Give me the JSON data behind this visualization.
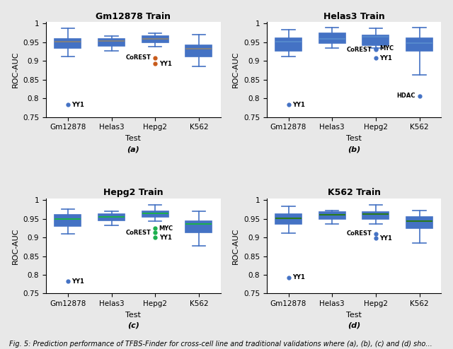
{
  "subplots": [
    {
      "title": "Gm12878 Train",
      "label": "(a)",
      "box_color": "#C85A1A",
      "box_edge_color": "#4472C4",
      "median_color": "#808080",
      "outlier_color": "#C85A1A",
      "whisker_color": "#4472C4",
      "categories": [
        "Gm12878",
        "Helas3",
        "Hepg2",
        "K562"
      ],
      "boxes": [
        {
          "q1": 0.935,
          "median": 0.952,
          "q3": 0.96,
          "whislo": 0.912,
          "whishi": 0.987
        },
        {
          "q1": 0.94,
          "median": 0.953,
          "q3": 0.96,
          "whislo": 0.928,
          "whishi": 0.966
        },
        {
          "q1": 0.95,
          "median": 0.96,
          "q3": 0.966,
          "whislo": 0.938,
          "whishi": 0.975
        },
        {
          "q1": 0.912,
          "median": 0.932,
          "q3": 0.943,
          "whislo": 0.885,
          "whishi": 0.97
        }
      ],
      "outliers": [
        {
          "cat_idx": 0,
          "val": 0.783,
          "label": "YY1",
          "label_side": "right",
          "color": "#4472C4"
        },
        {
          "cat_idx": 2,
          "val": 0.909,
          "label": "CoREST",
          "label_side": "left",
          "color": "#C85A1A"
        },
        {
          "cat_idx": 2,
          "val": 0.893,
          "label": "YY1",
          "label_side": "right",
          "color": "#C85A1A"
        }
      ],
      "ylim": [
        0.75,
        1.005
      ],
      "yticks": [
        0.75,
        0.8,
        0.85,
        0.9,
        0.95,
        1.0
      ]
    },
    {
      "title": "Helas3 Train",
      "label": "(b)",
      "box_color": "#3B5EA6",
      "box_edge_color": "#4472C4",
      "median_color": "#5588CC",
      "outlier_color": "#4472C4",
      "whisker_color": "#4472C4",
      "categories": [
        "Gm12878",
        "Helas3",
        "Hepg2",
        "K562"
      ],
      "boxes": [
        {
          "q1": 0.928,
          "median": 0.952,
          "q3": 0.962,
          "whislo": 0.912,
          "whishi": 0.983
        },
        {
          "q1": 0.948,
          "median": 0.96,
          "q3": 0.974,
          "whislo": 0.934,
          "whishi": 0.99
        },
        {
          "q1": 0.942,
          "median": 0.965,
          "q3": 0.968,
          "whislo": 0.935,
          "whishi": 0.988
        },
        {
          "q1": 0.928,
          "median": 0.948,
          "q3": 0.962,
          "whislo": 0.863,
          "whishi": 0.99
        }
      ],
      "outliers": [
        {
          "cat_idx": 0,
          "val": 0.783,
          "label": "YY1",
          "label_side": "right",
          "color": "#4472C4"
        },
        {
          "cat_idx": 2,
          "val": 0.93,
          "label": "CoREST",
          "label_side": "left",
          "color": "#4472C4"
        },
        {
          "cat_idx": 2,
          "val": 0.933,
          "label": "MYC",
          "label_side": "right",
          "color": "#4472C4"
        },
        {
          "cat_idx": 2,
          "val": 0.908,
          "label": "YY1",
          "label_side": "right",
          "color": "#4472C4"
        },
        {
          "cat_idx": 3,
          "val": 0.807,
          "label": "HDAC",
          "label_side": "left",
          "color": "#4472C4"
        }
      ],
      "ylim": [
        0.75,
        1.005
      ],
      "yticks": [
        0.75,
        0.8,
        0.85,
        0.9,
        0.95,
        1.0
      ]
    },
    {
      "title": "Hepg2 Train",
      "label": "(c)",
      "box_color": "#1DAF4E",
      "box_edge_color": "#4472C4",
      "median_color": "#1DAF4E",
      "outlier_color": "#1DAF4E",
      "whisker_color": "#4472C4",
      "categories": [
        "Gm12878",
        "Helas3",
        "Hepg2",
        "K562"
      ],
      "boxes": [
        {
          "q1": 0.93,
          "median": 0.95,
          "q3": 0.96,
          "whislo": 0.91,
          "whishi": 0.975
        },
        {
          "q1": 0.946,
          "median": 0.956,
          "q3": 0.963,
          "whislo": 0.932,
          "whishi": 0.97
        },
        {
          "q1": 0.955,
          "median": 0.965,
          "q3": 0.97,
          "whislo": 0.943,
          "whishi": 0.988
        },
        {
          "q1": 0.914,
          "median": 0.937,
          "q3": 0.944,
          "whislo": 0.878,
          "whishi": 0.97
        }
      ],
      "outliers": [
        {
          "cat_idx": 0,
          "val": 0.783,
          "label": "YY1",
          "label_side": "right",
          "color": "#4472C4"
        },
        {
          "cat_idx": 2,
          "val": 0.924,
          "label": "MYC",
          "label_side": "right",
          "color": "#1DAF4E"
        },
        {
          "cat_idx": 2,
          "val": 0.913,
          "label": "CoREST",
          "label_side": "left",
          "color": "#1DAF4E"
        },
        {
          "cat_idx": 2,
          "val": 0.9,
          "label": "YY1",
          "label_side": "right",
          "color": "#1DAF4E"
        }
      ],
      "ylim": [
        0.75,
        1.005
      ],
      "yticks": [
        0.75,
        0.8,
        0.85,
        0.9,
        0.95,
        1.0
      ]
    },
    {
      "title": "K562 Train",
      "label": "(d)",
      "box_color": "#5DA832",
      "box_edge_color": "#4472C4",
      "median_color": "#2A7A1A",
      "outlier_color": "#4472C4",
      "whisker_color": "#4472C4",
      "categories": [
        "Gm12878",
        "Helas3",
        "Hepg2",
        "K562"
      ],
      "boxes": [
        {
          "q1": 0.936,
          "median": 0.952,
          "q3": 0.962,
          "whislo": 0.912,
          "whishi": 0.983
        },
        {
          "q1": 0.95,
          "median": 0.961,
          "q3": 0.968,
          "whislo": 0.936,
          "whishi": 0.972
        },
        {
          "q1": 0.95,
          "median": 0.963,
          "q3": 0.968,
          "whislo": 0.936,
          "whishi": 0.988
        },
        {
          "q1": 0.924,
          "median": 0.944,
          "q3": 0.955,
          "whislo": 0.886,
          "whishi": 0.972
        }
      ],
      "outliers": [
        {
          "cat_idx": 0,
          "val": 0.793,
          "label": "YY1",
          "label_side": "right",
          "color": "#4472C4"
        },
        {
          "cat_idx": 2,
          "val": 0.91,
          "label": "CoREST",
          "label_side": "left",
          "color": "#4472C4"
        },
        {
          "cat_idx": 2,
          "val": 0.898,
          "label": "YY1",
          "label_side": "right",
          "color": "#4472C4"
        }
      ],
      "ylim": [
        0.75,
        1.005
      ],
      "yticks": [
        0.75,
        0.8,
        0.85,
        0.9,
        0.95,
        1.0
      ]
    }
  ],
  "xlabel": "Test",
  "ylabel": "ROC-AUC",
  "background_color": "#E8E8E8",
  "plot_bg_color": "#FFFFFF",
  "title_fontsize": 9,
  "label_fontsize": 8,
  "tick_fontsize": 7.5,
  "caption": "Fig. 5: Prediction performance of TFBS-Finder for cross-cell line and traditional validations where (a), (b), (c) and (d) sho...",
  "caption_fontsize": 7
}
